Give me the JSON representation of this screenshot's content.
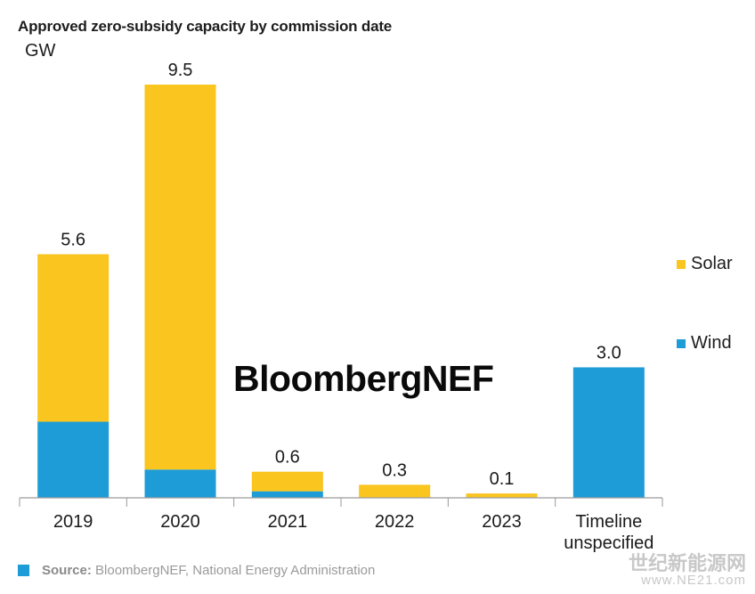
{
  "header": {
    "title": "Approved zero-subsidy capacity by commission date",
    "unit": "GW"
  },
  "watermark_text": "BloombergNEF",
  "source": {
    "label": "Source:",
    "text": "BloombergNEF, National Energy Administration"
  },
  "corner_watermark": {
    "line1": "世纪新能源网",
    "line2": "www.NE21.com"
  },
  "colors": {
    "solar": "#f9c51e",
    "wind": "#1e9cd7",
    "axis": "#9a9a9a"
  },
  "chart_data": {
    "type": "bar",
    "stacked": true,
    "title": "Approved zero-subsidy capacity by commission date",
    "ylabel": "GW",
    "xlabel": "",
    "categories": [
      "2019",
      "2020",
      "2021",
      "2022",
      "2023",
      "Timeline unspecified"
    ],
    "category_lines": [
      [
        "2019"
      ],
      [
        "2020"
      ],
      [
        "2021"
      ],
      [
        "2022"
      ],
      [
        "2023"
      ],
      [
        "Timeline",
        "unspecified"
      ]
    ],
    "series": [
      {
        "name": "Wind",
        "values": [
          1.75,
          0.65,
          0.15,
          0.0,
          0.0,
          3.0
        ]
      },
      {
        "name": "Solar",
        "values": [
          3.85,
          8.85,
          0.45,
          0.3,
          0.1,
          0.0
        ]
      }
    ],
    "totals": [
      5.6,
      9.5,
      0.6,
      0.3,
      0.1,
      3.0
    ],
    "total_labels": [
      "5.6",
      "9.5",
      "0.6",
      "0.3",
      "0.1",
      "3.0"
    ],
    "ylim": [
      0,
      9.5
    ],
    "grid": false,
    "legend": {
      "position": "right",
      "entries": [
        "Solar",
        "Wind"
      ]
    }
  }
}
